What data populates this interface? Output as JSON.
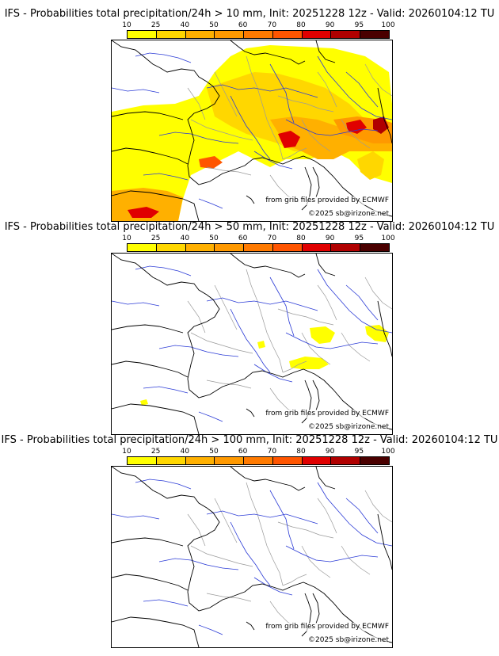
{
  "panels": [
    {
      "title": "IFS - Probabilities total precipitation/24h > 10 mm, Init: 20251228 12z - Valid: 20260104:12 TU",
      "threshold_mm": 10,
      "coverage": "widespread"
    },
    {
      "title": "IFS - Probabilities total precipitation/24h > 50 mm, Init: 20251228 12z - Valid: 20260104:12 TU",
      "threshold_mm": 50,
      "coverage": "scattered"
    },
    {
      "title": "IFS - Probabilities total precipitation/24h > 100 mm, Init: 20251228 12z - Valid: 20260104:12 TU",
      "threshold_mm": 100,
      "coverage": "none"
    }
  ],
  "colorbar": {
    "ticks": [
      "10",
      "25",
      "40",
      "50",
      "60",
      "70",
      "80",
      "90",
      "95",
      "100"
    ],
    "colors": [
      "#ffff00",
      "#ffd700",
      "#ffb000",
      "#ff9900",
      "#ff7a00",
      "#ff5500",
      "#e00000",
      "#b00000",
      "#800000",
      "#4a0000"
    ]
  },
  "credits": {
    "source": "from grib files provided by ECMWF",
    "copyright": "©2025 sb@irizone.net"
  },
  "map_colors": {
    "coast": "#000000",
    "rivers": "#2b3bd6",
    "borders": "#9a9a9a"
  }
}
